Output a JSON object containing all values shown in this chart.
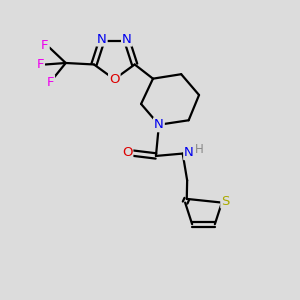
{
  "bg_color": "#dcdcdc",
  "bond_color": "#000000",
  "bond_width": 1.6,
  "atom_colors": {
    "N": "#0000ee",
    "O": "#dd0000",
    "S": "#aaaa00",
    "F": "#ee00ee",
    "H": "#888888",
    "C": "#000000"
  },
  "font_size": 8.5,
  "fig_size": [
    3.0,
    3.0
  ],
  "dpi": 100
}
